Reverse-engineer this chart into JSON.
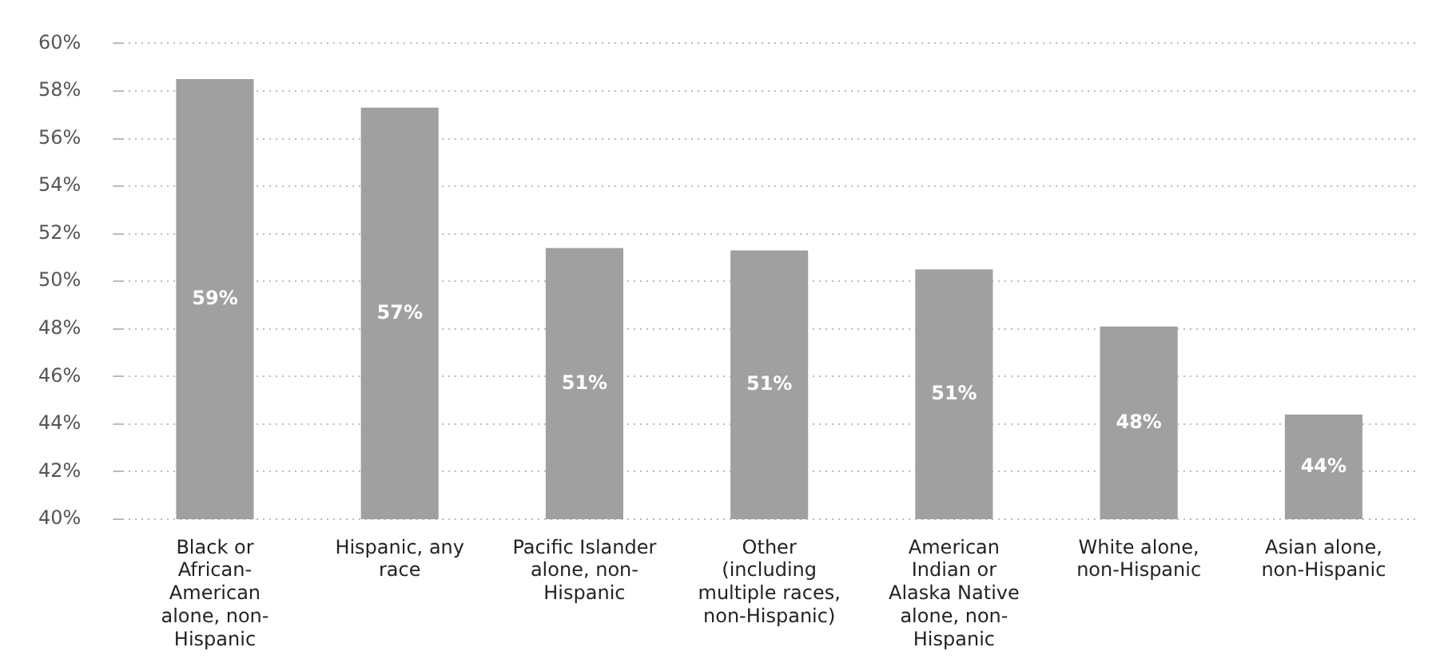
{
  "chart_data": {
    "type": "bar",
    "categories": [
      "Black or African-American alone, non-Hispanic",
      "Hispanic, any race",
      "Pacific Islander alone, non-Hispanic",
      "Other (including multiple races, non-Hispanic)",
      "American Indian or Alaska Native alone, non-Hispanic",
      "White alone, non-Hispanic",
      "Asian alone, non-Hispanic"
    ],
    "values": [
      58.5,
      57.3,
      51.4,
      51.3,
      50.5,
      48.1,
      44.4
    ],
    "value_labels": [
      "59%",
      "57%",
      "51%",
      "51%",
      "51%",
      "48%",
      "44%"
    ],
    "color": "#a0a0a0",
    "ylim": [
      40,
      60
    ],
    "yticks": [
      {
        "value": 40,
        "label": "40%"
      },
      {
        "value": 42,
        "label": "42%"
      },
      {
        "value": 44,
        "label": "44%"
      },
      {
        "value": 46,
        "label": "46%"
      },
      {
        "value": 48,
        "label": "48%"
      },
      {
        "value": 50,
        "label": "50%"
      },
      {
        "value": 52,
        "label": "52%"
      },
      {
        "value": 54,
        "label": "54%"
      },
      {
        "value": 56,
        "label": "56%"
      },
      {
        "value": 58,
        "label": "58%"
      },
      {
        "value": 60,
        "label": "60%"
      }
    ],
    "grid": "y",
    "legend": false
  }
}
